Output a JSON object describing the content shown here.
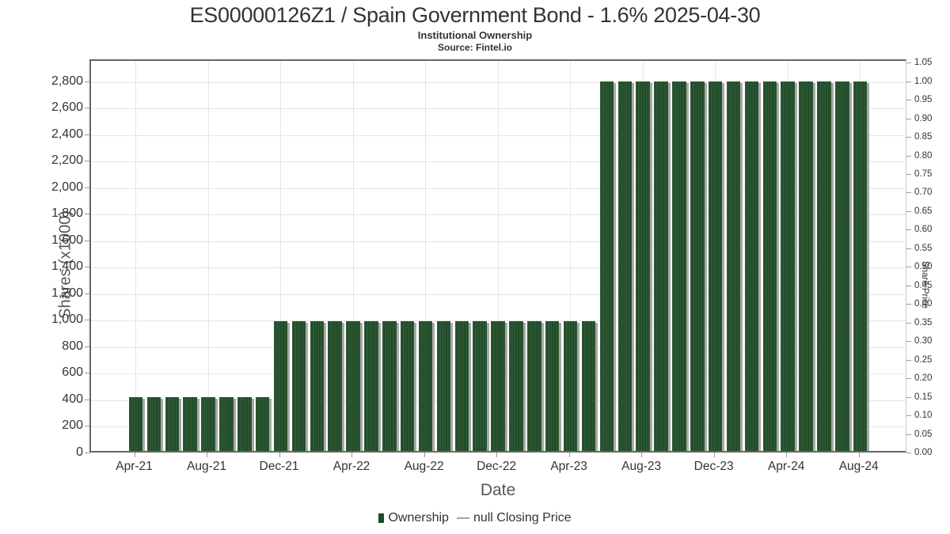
{
  "header": {
    "title": "ES00000126Z1 / Spain Government Bond - 1.6% 2025-04-30",
    "subtitle": "Institutional Ownership",
    "source": "Source: Fintel.io"
  },
  "chart_data": {
    "type": "bar",
    "title": "ES00000126Z1 / Spain Government Bond - 1.6% 2025-04-30",
    "subtitle": "Institutional Ownership",
    "xlabel": "Date",
    "ylabel_left": "Shares (x1000)",
    "ylabel_right": "Share Price",
    "grid": true,
    "legend_position": "bottom-center",
    "categories": [
      "Apr-21",
      "May-21",
      "Jun-21",
      "Jul-21",
      "Aug-21",
      "Sep-21",
      "Oct-21",
      "Nov-21",
      "Dec-21",
      "Jan-22",
      "Feb-22",
      "Mar-22",
      "Apr-22",
      "May-22",
      "Jun-22",
      "Jul-22",
      "Aug-22",
      "Sep-22",
      "Oct-22",
      "Nov-22",
      "Dec-22",
      "Jan-23",
      "Feb-23",
      "Mar-23",
      "Apr-23",
      "May-23",
      "Jun-23",
      "Jul-23",
      "Aug-23",
      "Sep-23",
      "Oct-23",
      "Nov-23",
      "Dec-23",
      "Jan-24",
      "Feb-24",
      "Mar-24",
      "Apr-24",
      "May-24",
      "Jun-24",
      "Jul-24",
      "Aug-24"
    ],
    "series": [
      {
        "name": "Ownership",
        "unit": "shares (x1000)",
        "values": [
          430,
          430,
          430,
          430,
          430,
          430,
          430,
          430,
          1005,
          1005,
          1005,
          1005,
          1005,
          1005,
          1005,
          1005,
          1005,
          1005,
          1005,
          1005,
          1005,
          1005,
          1005,
          1005,
          1005,
          1005,
          2810,
          2810,
          2810,
          2810,
          2810,
          2810,
          2810,
          2810,
          2810,
          2810,
          2810,
          2810,
          2810,
          2810,
          2810
        ]
      },
      {
        "name": "null Closing Price",
        "unit": "share price",
        "values": []
      }
    ],
    "x_tick_labels": [
      "Apr-21",
      "Aug-21",
      "Dec-21",
      "Apr-22",
      "Aug-22",
      "Dec-22",
      "Apr-23",
      "Aug-23",
      "Dec-23",
      "Apr-24",
      "Aug-24"
    ],
    "x_tick_indices": [
      0,
      4,
      8,
      12,
      16,
      20,
      24,
      28,
      32,
      36,
      40
    ],
    "y_left_axis": {
      "min": 0,
      "max": 2965,
      "tick_step": 200,
      "tick_labels": [
        "0",
        "200",
        "400",
        "600",
        "800",
        "1,000",
        "1,200",
        "1,400",
        "1,600",
        "1,800",
        "2,000",
        "2,200",
        "2,400",
        "2,600",
        "2,800"
      ]
    },
    "y_right_axis": {
      "min": 0,
      "max": 1.05,
      "tick_step": 0.05,
      "left_equivalent_per_unit": 2800,
      "tick_labels": [
        "0.00",
        "0.05",
        "0.10",
        "0.15",
        "0.20",
        "0.25",
        "0.30",
        "0.35",
        "0.40",
        "0.45",
        "0.50",
        "0.55",
        "0.60",
        "0.65",
        "0.70",
        "0.75",
        "0.80",
        "0.85",
        "0.90",
        "0.95",
        "1.00",
        "1.05"
      ]
    },
    "legend": [
      {
        "label": "Ownership",
        "marker": "column",
        "color": "#1e4b2a"
      },
      {
        "label": "null Closing Price",
        "marker": "dash",
        "color": "#555555"
      }
    ]
  },
  "colors": {
    "bar_fill": "#2e5935",
    "bar_stripe": "#214a29",
    "bar_shadow": "#a9a9a9",
    "grid": "#e6e6e6",
    "plot_border_dark": "#666666",
    "plot_border_light": "#cccccc",
    "text": "#333333",
    "axis_title": "#555555"
  },
  "legend_text": {
    "ownership": "Ownership",
    "dash": "—",
    "closing_price": "null Closing Price"
  }
}
